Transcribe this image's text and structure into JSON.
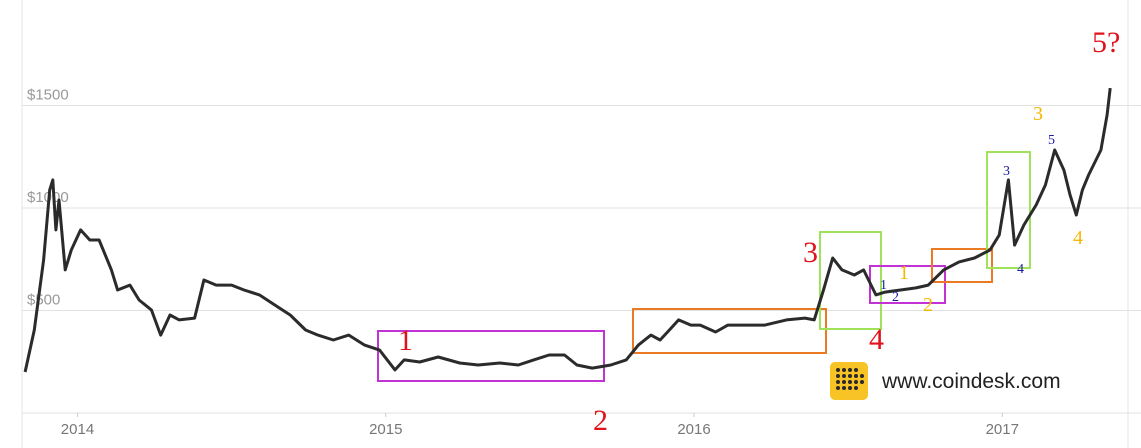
{
  "chart_data": {
    "type": "line",
    "color": "#2b2b2b",
    "x": [
      2013.83,
      2013.86,
      2013.89,
      2013.91,
      2013.92,
      2013.93,
      2013.94,
      2013.96,
      2013.98,
      2014.01,
      2014.04,
      2014.07,
      2014.11,
      2014.13,
      2014.17,
      2014.2,
      2014.24,
      2014.27,
      2014.3,
      2014.33,
      2014.38,
      2014.41,
      2014.45,
      2014.5,
      2014.54,
      2014.59,
      2014.64,
      2014.69,
      2014.74,
      2014.78,
      2014.83,
      2014.88,
      2014.93,
      2014.98,
      2015.03,
      2015.06,
      2015.11,
      2015.17,
      2015.24,
      2015.3,
      2015.37,
      2015.43,
      2015.48,
      2015.53,
      2015.58,
      2015.62,
      2015.67,
      2015.73,
      2015.78,
      2015.82,
      2015.86,
      2015.89,
      2015.92,
      2015.95,
      2015.99,
      2016.02,
      2016.07,
      2016.11,
      2016.18,
      2016.23,
      2016.3,
      2016.36,
      2016.39,
      2016.42,
      2016.45,
      2016.48,
      2016.52,
      2016.55,
      2016.59,
      2016.62,
      2016.67,
      2016.72,
      2016.76,
      2016.81,
      2016.86,
      2016.91,
      2016.96,
      2016.99,
      2017.02,
      2017.04,
      2017.07,
      2017.11,
      2017.14,
      2017.17,
      2017.2,
      2017.22,
      2017.24,
      2017.26,
      2017.28,
      2017.32,
      2017.34,
      2017.35
    ],
    "values": [
      200,
      405,
      746,
      1088,
      1137,
      893,
      1039,
      698,
      795,
      893,
      844,
      844,
      698,
      600,
      624,
      551,
      502,
      380,
      478,
      454,
      463,
      649,
      624,
      624,
      600,
      576,
      527,
      478,
      405,
      380,
      356,
      380,
      332,
      307,
      210,
      259,
      249,
      273,
      244,
      234,
      244,
      234,
      259,
      283,
      283,
      234,
      219,
      234,
      259,
      332,
      380,
      356,
      405,
      454,
      429,
      429,
      395,
      429,
      429,
      429,
      454,
      463,
      454,
      600,
      756,
      698,
      673,
      698,
      576,
      590,
      600,
      610,
      624,
      698,
      737,
      756,
      795,
      868,
      1137,
      819,
      917,
      1015,
      1112,
      1283,
      1185,
      1063,
      966,
      1088,
      1161,
      1283,
      1454,
      1585
    ],
    "xlim": [
      2013.82,
      2017.45
    ],
    "xticks": [
      2014,
      2015,
      2016,
      2017
    ],
    "ylim": [
      0,
      2000
    ],
    "yticks": [
      {
        "value": 500,
        "label": "$500"
      },
      {
        "value": 1000,
        "label": "$1000"
      },
      {
        "value": 1500,
        "label": "$1500"
      }
    ],
    "grid": true,
    "annotations": [
      "1",
      "2",
      "3",
      "4",
      "5?",
      "1",
      "2",
      "3",
      "4",
      "1",
      "2",
      "3",
      "4",
      "5"
    ],
    "watermark": "www.coindesk.com"
  }
}
